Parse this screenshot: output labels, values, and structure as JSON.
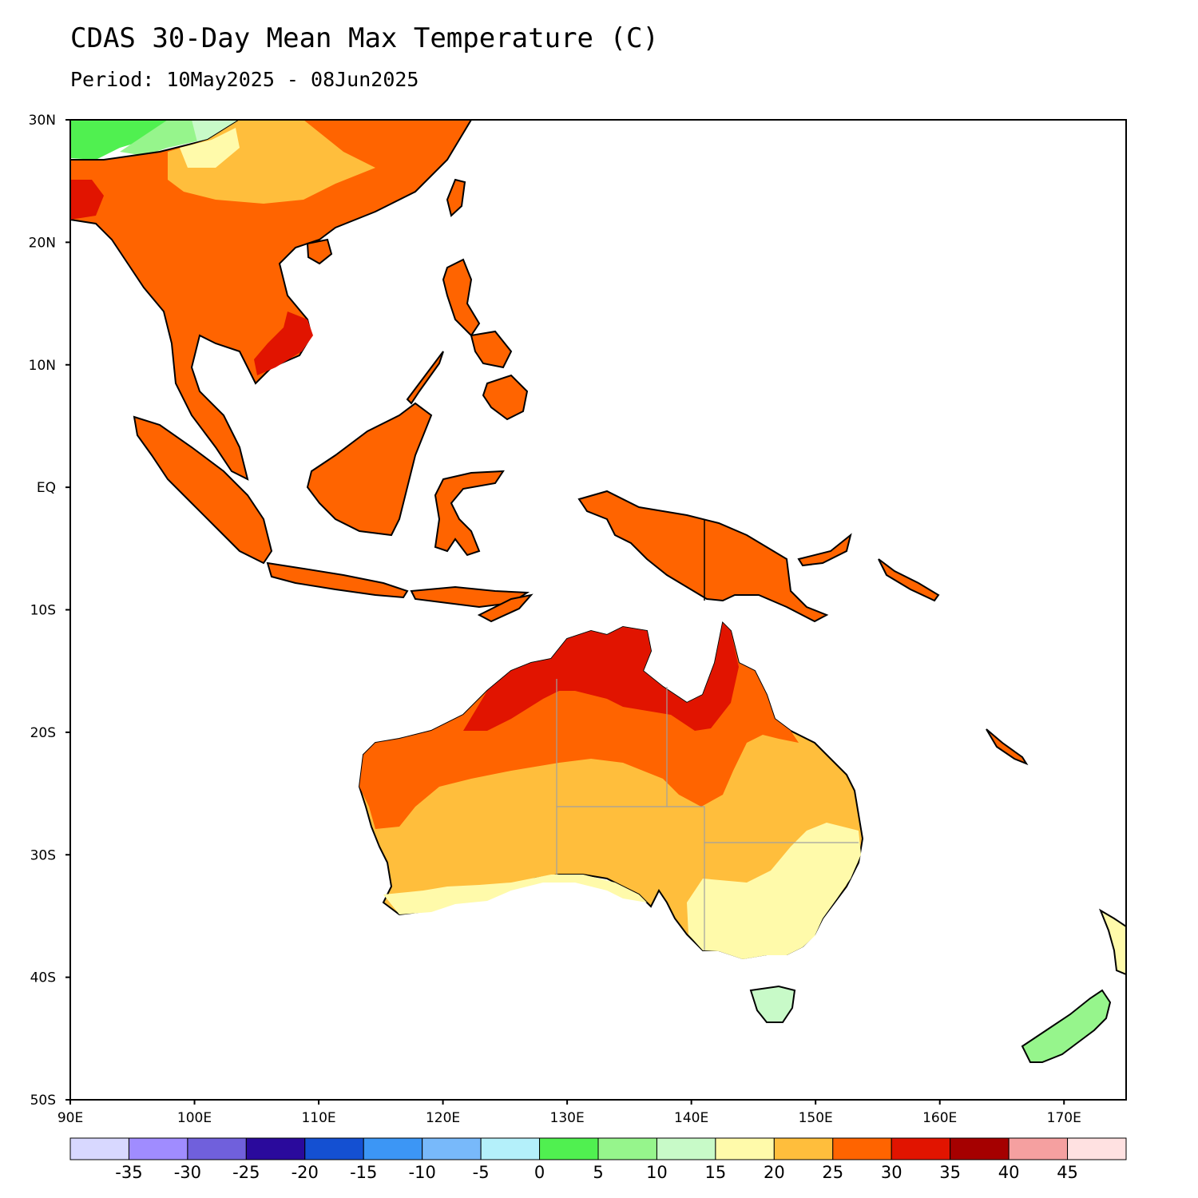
{
  "title": "CDAS 30-Day Mean Max Temperature (C)",
  "subtitle": "Period: 10May2025 - 08Jun2025",
  "map": {
    "lon_range": [
      90,
      175
    ],
    "lat_range": [
      -50,
      30
    ],
    "lat_ticks": [
      "30N",
      "20N",
      "10N",
      "EQ",
      "10S",
      "20S",
      "30S",
      "40S",
      "50S"
    ],
    "lon_ticks": [
      "90E",
      "100E",
      "110E",
      "120E",
      "130E",
      "140E",
      "150E",
      "160E",
      "170E"
    ],
    "regions": [
      {
        "name": "Southeast Asia mainland",
        "band": "25-30"
      },
      {
        "name": "Southern China",
        "band": "20-25"
      },
      {
        "name": "Tibetan margin",
        "band": "5-10"
      },
      {
        "name": "Southern Vietnam",
        "band": "30-35"
      },
      {
        "name": "Sumatra",
        "band": "25-30"
      },
      {
        "name": "Borneo",
        "band": "25-30"
      },
      {
        "name": "Java",
        "band": "25-30"
      },
      {
        "name": "Sulawesi",
        "band": "25-30"
      },
      {
        "name": "Philippines",
        "band": "25-30"
      },
      {
        "name": "New Guinea",
        "band": "25-30"
      },
      {
        "name": "Northern Australia",
        "band": "30-35"
      },
      {
        "name": "Central Australia",
        "band": "25-30"
      },
      {
        "name": "Southern Australia",
        "band": "20-25"
      },
      {
        "name": "Southeast Australia",
        "band": "15-20"
      },
      {
        "name": "Tasmania",
        "band": "10-15"
      },
      {
        "name": "New Zealand South Island",
        "band": "5-10"
      },
      {
        "name": "New Caledonia",
        "band": "25-30"
      }
    ]
  },
  "colorbar": {
    "labels": [
      "-35",
      "-30",
      "-25",
      "-20",
      "-15",
      "-10",
      "-5",
      "0",
      "5",
      "10",
      "15",
      "20",
      "25",
      "30",
      "35",
      "40",
      "45"
    ],
    "colors": [
      "#d8d8ff",
      "#a08cff",
      "#7060dc",
      "#2a0a9c",
      "#1450d2",
      "#3c96f5",
      "#78b9fa",
      "#b4f0fa",
      "#50f050",
      "#96f58c",
      "#c8fac8",
      "#fffaaa",
      "#ffbe3c",
      "#ff6400",
      "#e11400",
      "#a50000",
      "#f5a0a0",
      "#ffe1e1"
    ]
  }
}
